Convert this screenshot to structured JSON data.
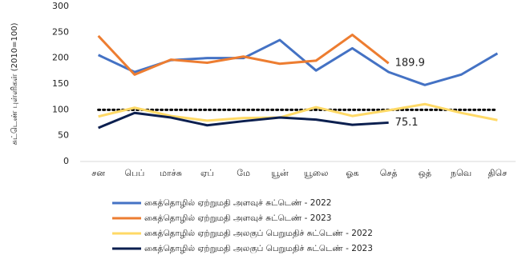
{
  "chart_data": {
    "type": "line",
    "y_label": "சுட்டெண் புள்ளிகள் (2010=100)",
    "categories": [
      "சன",
      "பெப்",
      "மாச்சு",
      "ஏப்",
      "மே",
      "யூன்",
      "யூலை",
      "ஓக",
      "செத்",
      "ஒத்",
      "நவெ",
      "திசெ"
    ],
    "series": [
      {
        "name": "கைத்தொழில் ஏற்றுமதி அளவுச் சுட்டெண் - 2022",
        "color": "#4472c4",
        "values": [
          206,
          173,
          196,
          200,
          200,
          235,
          176,
          219,
          173,
          148,
          168,
          209
        ]
      },
      {
        "name": "கைத்தொழில் ஏற்றுமதி அளவுச் சுட்டெண் - 2023",
        "color": "#ed7d31",
        "values": [
          243,
          168,
          197,
          191,
          203,
          189,
          195,
          245,
          189.9,
          null,
          null,
          null
        ],
        "value_labels": [
          null,
          null,
          null,
          null,
          null,
          null,
          null,
          null,
          "189.9",
          null,
          null,
          null
        ]
      },
      {
        "name": "கைத்தொழில் ஏற்றுமதி அலகுப் பெறுமதிச் சுட்டெண் - 2022",
        "color": "#ffd966",
        "values": [
          87,
          104,
          88,
          79,
          84,
          85,
          105,
          88,
          99,
          111,
          94,
          80
        ]
      },
      {
        "name": "கைத்தொழில் ஏற்றுமதி அலகுப் பெறுமதிச் சுட்டெண் - 2023",
        "color": "#0b1f4f",
        "values": [
          65,
          94,
          85,
          70,
          78,
          85,
          81,
          71,
          75.1,
          null,
          null,
          null
        ],
        "value_labels": [
          null,
          null,
          null,
          null,
          null,
          null,
          null,
          null,
          "75.1",
          null,
          null,
          null
        ]
      }
    ],
    "reference_line": {
      "value": 100,
      "color": "#000000"
    },
    "ylim": [
      0,
      300
    ],
    "yticks": [
      0,
      50,
      100,
      150,
      200,
      250,
      300
    ],
    "grid": false
  }
}
